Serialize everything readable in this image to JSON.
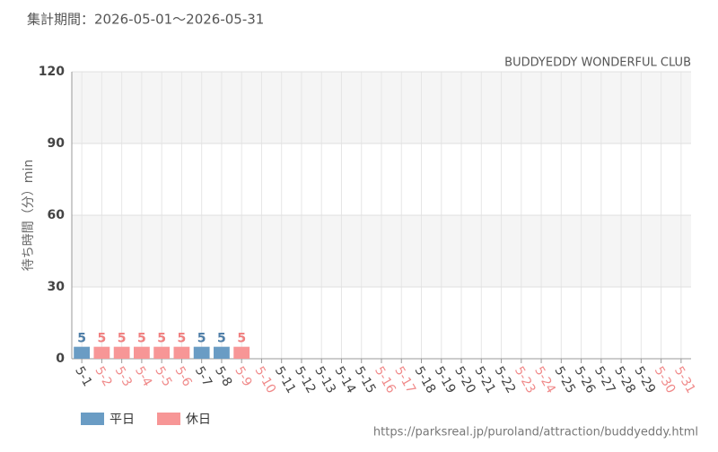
{
  "chart_data": {
    "type": "bar",
    "title": "集計期間：2026-05-01～2026-05-31",
    "subtitle": "BUDDYEDDY WONDERFUL CLUB",
    "y_label": "待ち時間（分）min",
    "source": "https://parksreal.jp/puroland/attraction/buddyeddy.html",
    "categories": [
      "5-1",
      "5-2",
      "5-3",
      "5-4",
      "5-5",
      "5-6",
      "5-7",
      "5-8",
      "5-9",
      "5-10",
      "5-11",
      "5-12",
      "5-13",
      "5-14",
      "5-15",
      "5-16",
      "5-17",
      "5-18",
      "5-19",
      "5-20",
      "5-21",
      "5-22",
      "5-23",
      "5-24",
      "5-25",
      "5-26",
      "5-27",
      "5-28",
      "5-29",
      "5-30",
      "5-31"
    ],
    "category_colors": [
      "#444",
      "#f08a8a",
      "#f08a8a",
      "#f08a8a",
      "#f08a8a",
      "#f08a8a",
      "#444",
      "#444",
      "#f08a8a",
      "#f08a8a",
      "#444",
      "#444",
      "#444",
      "#444",
      "#444",
      "#f08a8a",
      "#f08a8a",
      "#444",
      "#444",
      "#444",
      "#444",
      "#444",
      "#f08a8a",
      "#f08a8a",
      "#444",
      "#444",
      "#444",
      "#444",
      "#444",
      "#f08a8a",
      "#f08a8a"
    ],
    "series": [
      {
        "name": "平日",
        "color": "#6a9cc4",
        "label_color": "#4f7fa8",
        "values": [
          5,
          null,
          null,
          null,
          null,
          null,
          5,
          5,
          null,
          null,
          null,
          null,
          null,
          null,
          null,
          null,
          null,
          null,
          null,
          null,
          null,
          null,
          null,
          null,
          null,
          null,
          null,
          null,
          null,
          null,
          null
        ]
      },
      {
        "name": "休日",
        "color": "#f79696",
        "label_color": "#f08080",
        "values": [
          null,
          5,
          5,
          5,
          5,
          5,
          null,
          null,
          5,
          null,
          null,
          null,
          null,
          null,
          null,
          null,
          null,
          null,
          null,
          null,
          null,
          null,
          null,
          null,
          null,
          null,
          null,
          null,
          null,
          null,
          null
        ]
      }
    ],
    "ylim": [
      0,
      120
    ],
    "yticks": [
      0,
      30,
      60,
      90,
      120
    ],
    "grid": true
  }
}
